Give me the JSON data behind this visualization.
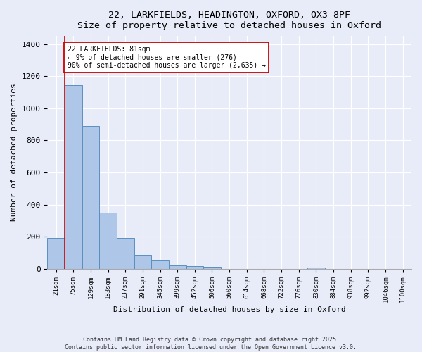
{
  "title_line1": "22, LARKFIELDS, HEADINGTON, OXFORD, OX3 8PF",
  "title_line2": "Size of property relative to detached houses in Oxford",
  "xlabel": "Distribution of detached houses by size in Oxford",
  "ylabel": "Number of detached properties",
  "bin_labels": [
    "21sqm",
    "75sqm",
    "129sqm",
    "183sqm",
    "237sqm",
    "291sqm",
    "345sqm",
    "399sqm",
    "452sqm",
    "506sqm",
    "560sqm",
    "614sqm",
    "668sqm",
    "722sqm",
    "776sqm",
    "830sqm",
    "884sqm",
    "938sqm",
    "992sqm",
    "1046sqm",
    "1100sqm"
  ],
  "bar_heights": [
    195,
    1145,
    890,
    350,
    195,
    88,
    55,
    22,
    20,
    12,
    0,
    0,
    0,
    0,
    0,
    10,
    0,
    0,
    0,
    0,
    0
  ],
  "bar_color": "#aec6e8",
  "bar_edge_color": "#5a8fc0",
  "background_color": "#e8ecf8",
  "grid_color": "#ffffff",
  "vline_x": 1,
  "vline_color": "#cc0000",
  "annotation_text": "22 LARKFIELDS: 81sqm\n← 9% of detached houses are smaller (276)\n90% of semi-detached houses are larger (2,635) →",
  "annotation_box_color": "#ffffff",
  "annotation_box_edge": "#cc0000",
  "ylim": [
    0,
    1450
  ],
  "yticks": [
    0,
    200,
    400,
    600,
    800,
    1000,
    1200,
    1400
  ],
  "footer_line1": "Contains HM Land Registry data © Crown copyright and database right 2025.",
  "footer_line2": "Contains public sector information licensed under the Open Government Licence v3.0."
}
